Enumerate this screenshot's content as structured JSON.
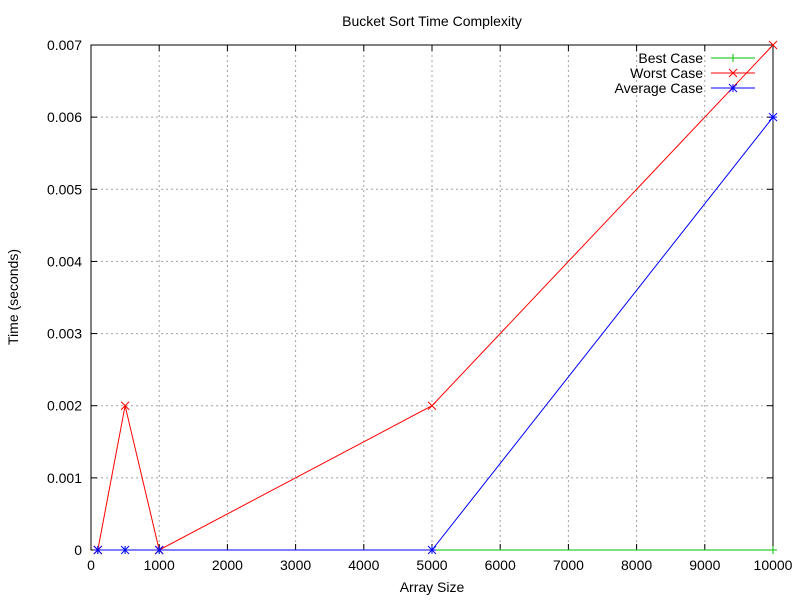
{
  "chart_data": {
    "type": "line",
    "title": "Bucket Sort Time Complexity",
    "xlabel": "Array Size",
    "ylabel": "Time (seconds)",
    "xlim": [
      0,
      10000
    ],
    "ylim": [
      0,
      0.007
    ],
    "x_ticks": [
      0,
      1000,
      2000,
      3000,
      4000,
      5000,
      6000,
      7000,
      8000,
      9000,
      10000
    ],
    "y_ticks": [
      0,
      0.001,
      0.002,
      0.003,
      0.004,
      0.005,
      0.006,
      0.007
    ],
    "x_tick_labels": [
      "0",
      "1000",
      "2000",
      "3000",
      "4000",
      "5000",
      "6000",
      "7000",
      "8000",
      "9000",
      "10000"
    ],
    "y_tick_labels": [
      "0",
      "0.001",
      "0.002",
      "0.003",
      "0.004",
      "0.005",
      "0.006",
      "0.007"
    ],
    "grid": true,
    "legend_position": "top-right",
    "series": [
      {
        "name": "Best Case",
        "color": "#00c000",
        "marker": "plus",
        "x": [
          100,
          500,
          1000,
          5000,
          10000
        ],
        "y": [
          0,
          0,
          0,
          0,
          0
        ]
      },
      {
        "name": "Worst Case",
        "color": "#ff0000",
        "marker": "cross",
        "x": [
          100,
          500,
          1000,
          5000,
          10000
        ],
        "y": [
          0,
          0.002,
          0,
          0.002,
          0.007
        ]
      },
      {
        "name": "Average Case",
        "color": "#0000ff",
        "marker": "star",
        "x": [
          100,
          500,
          1000,
          5000,
          10000
        ],
        "y": [
          0,
          0,
          0,
          0,
          0.006
        ]
      }
    ]
  }
}
